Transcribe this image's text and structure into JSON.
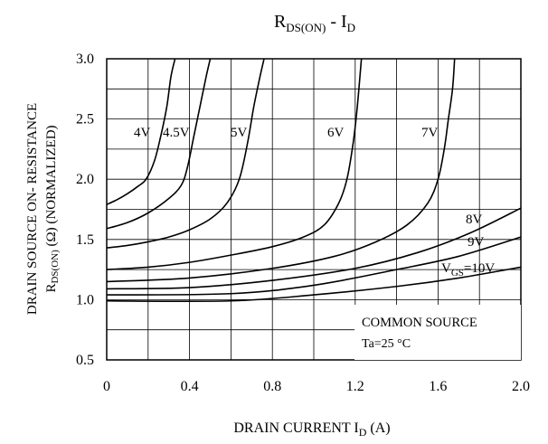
{
  "chart_data": {
    "type": "line",
    "title": "R",
    "title_sub": "DS(ON)",
    "title_mid": " - I",
    "title_sub2": "D",
    "xlabel": "DRAIN CURRENT I",
    "xlabel_sub": "D",
    "xlabel_unit": " (A)",
    "ylabel_line1": "DRAIN SOURCE ON- RESISTANCE",
    "ylabel_line2_a": "R",
    "ylabel_line2_sub": "DS(ON)",
    "ylabel_line2_b": " (Ω) (NORMALIZED)",
    "xlim": [
      0,
      2.0
    ],
    "ylim": [
      0.5,
      3.0
    ],
    "x_ticks": [
      "0",
      "0.4",
      "0.8",
      "1.2",
      "1.6",
      "2.0"
    ],
    "x_tick_values": [
      0,
      0.4,
      0.8,
      1.2,
      1.6,
      2.0
    ],
    "y_ticks": [
      "0.5",
      "1.0",
      "1.5",
      "2.0",
      "2.5",
      "3.0"
    ],
    "y_tick_values": [
      0.5,
      1.0,
      1.5,
      2.0,
      2.5,
      3.0
    ],
    "grid": true,
    "annotation_line1": "COMMON SOURCE",
    "annotation_line2": "Ta=25 °C",
    "series": [
      {
        "name": "4V",
        "label": "4V",
        "points": [
          [
            0,
            1.79
          ],
          [
            0.05,
            1.83
          ],
          [
            0.1,
            1.88
          ],
          [
            0.15,
            1.94
          ],
          [
            0.19,
            2.0
          ],
          [
            0.23,
            2.15
          ],
          [
            0.26,
            2.35
          ],
          [
            0.29,
            2.6
          ],
          [
            0.31,
            2.85
          ],
          [
            0.33,
            3.0
          ]
        ]
      },
      {
        "name": "4.5V",
        "label": "4.5V",
        "points": [
          [
            0,
            1.59
          ],
          [
            0.1,
            1.64
          ],
          [
            0.2,
            1.72
          ],
          [
            0.3,
            1.84
          ],
          [
            0.36,
            1.95
          ],
          [
            0.39,
            2.1
          ],
          [
            0.42,
            2.35
          ],
          [
            0.45,
            2.6
          ],
          [
            0.48,
            2.85
          ],
          [
            0.5,
            3.0
          ]
        ]
      },
      {
        "name": "5V",
        "label": "5V",
        "points": [
          [
            0,
            1.43
          ],
          [
            0.1,
            1.45
          ],
          [
            0.2,
            1.48
          ],
          [
            0.3,
            1.52
          ],
          [
            0.4,
            1.58
          ],
          [
            0.5,
            1.67
          ],
          [
            0.58,
            1.8
          ],
          [
            0.64,
            2.0
          ],
          [
            0.68,
            2.3
          ],
          [
            0.71,
            2.6
          ],
          [
            0.74,
            2.85
          ],
          [
            0.76,
            3.0
          ]
        ]
      },
      {
        "name": "6V",
        "label": "6V",
        "points": [
          [
            0,
            1.25
          ],
          [
            0.2,
            1.27
          ],
          [
            0.4,
            1.31
          ],
          [
            0.6,
            1.37
          ],
          [
            0.8,
            1.44
          ],
          [
            0.95,
            1.52
          ],
          [
            1.05,
            1.62
          ],
          [
            1.12,
            1.8
          ],
          [
            1.16,
            2.0
          ],
          [
            1.19,
            2.3
          ],
          [
            1.21,
            2.6
          ],
          [
            1.23,
            3.0
          ]
        ]
      },
      {
        "name": "7V",
        "label": "7V",
        "points": [
          [
            0,
            1.15
          ],
          [
            0.4,
            1.18
          ],
          [
            0.8,
            1.26
          ],
          [
            1.1,
            1.36
          ],
          [
            1.3,
            1.48
          ],
          [
            1.45,
            1.62
          ],
          [
            1.55,
            1.8
          ],
          [
            1.6,
            2.0
          ],
          [
            1.63,
            2.25
          ],
          [
            1.65,
            2.5
          ],
          [
            1.67,
            2.75
          ],
          [
            1.68,
            3.0
          ]
        ]
      },
      {
        "name": "8V",
        "label": "8V",
        "points": [
          [
            0,
            1.09
          ],
          [
            0.4,
            1.1
          ],
          [
            0.8,
            1.16
          ],
          [
            1.2,
            1.26
          ],
          [
            1.5,
            1.39
          ],
          [
            1.75,
            1.55
          ],
          [
            2.0,
            1.76
          ]
        ]
      },
      {
        "name": "9V",
        "label": "9V",
        "points": [
          [
            0,
            1.04
          ],
          [
            0.6,
            1.05
          ],
          [
            1.0,
            1.12
          ],
          [
            1.4,
            1.25
          ],
          [
            1.7,
            1.36
          ],
          [
            2.0,
            1.52
          ]
        ]
      },
      {
        "name": "VGS=10V",
        "label_a": "V",
        "label_sub": "GS",
        "label_b": "=10V",
        "points": [
          [
            0,
            0.99
          ],
          [
            0.6,
            0.99
          ],
          [
            1.0,
            1.04
          ],
          [
            1.4,
            1.11
          ],
          [
            1.7,
            1.18
          ],
          [
            2.0,
            1.27
          ]
        ]
      }
    ]
  }
}
